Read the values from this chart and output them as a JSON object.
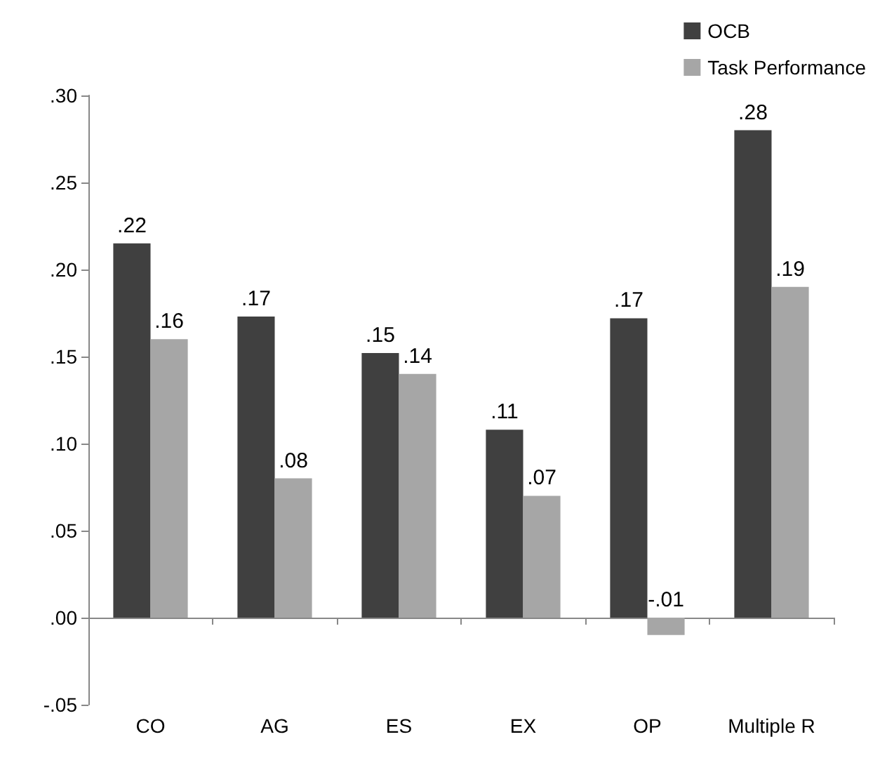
{
  "chart_data": {
    "type": "bar",
    "categories": [
      "CO",
      "AG",
      "ES",
      "EX",
      "OP",
      "Multiple R"
    ],
    "series": [
      {
        "name": "OCB",
        "color": "#404040",
        "values": [
          0.215,
          0.173,
          0.152,
          0.108,
          0.172,
          0.28
        ],
        "value_labels": [
          ".22",
          ".17",
          ".15",
          ".11",
          ".17",
          ".28"
        ]
      },
      {
        "name": "Task Performance",
        "color": "#a6a6a6",
        "values": [
          0.16,
          0.08,
          0.14,
          0.07,
          -0.01,
          0.19
        ],
        "value_labels": [
          ".16",
          ".08",
          ".14",
          ".07",
          "-.01",
          ".19"
        ]
      }
    ],
    "ylim": [
      -0.05,
      0.3
    ],
    "yticks": [
      {
        "value": -0.05,
        "label": "-.05"
      },
      {
        "value": 0,
        "label": ".00"
      },
      {
        "value": 0.05,
        "label": ".05"
      },
      {
        "value": 0.1,
        "label": ".10"
      },
      {
        "value": 0.15,
        "label": ".15"
      },
      {
        "value": 0.2,
        "label": ".20"
      },
      {
        "value": 0.25,
        "label": ".25"
      },
      {
        "value": 0.3,
        "label": ".30"
      }
    ],
    "legend": "top right"
  }
}
